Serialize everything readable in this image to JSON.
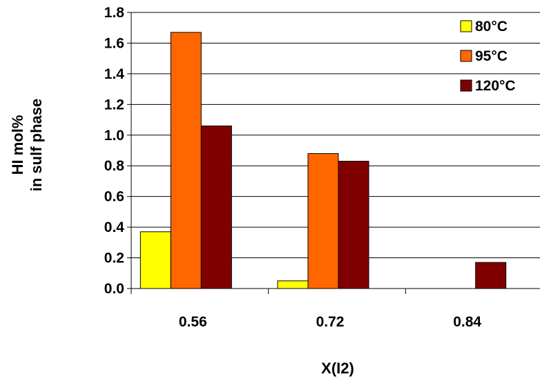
{
  "chart_data": {
    "type": "bar",
    "categories": [
      "0.56",
      "0.72",
      "0.84"
    ],
    "series": [
      {
        "name": "80°C",
        "values": [
          0.37,
          0.05,
          0.0
        ],
        "color": "#FFFF00"
      },
      {
        "name": "95°C",
        "values": [
          1.67,
          0.88,
          0.0
        ],
        "color": "#FF6600"
      },
      {
        "name": "120°C",
        "values": [
          1.06,
          0.83,
          0.17
        ],
        "color": "#800000"
      }
    ],
    "title": "",
    "xlabel": "X(I2)",
    "ylabel_lines": [
      "HI mol%",
      "in sulf phase"
    ],
    "ylim": [
      0,
      1.8
    ],
    "yticks": [
      "0.0",
      "0.2",
      "0.4",
      "0.6",
      "0.8",
      "1.0",
      "1.2",
      "1.4",
      "1.6",
      "1.8"
    ],
    "grid": true,
    "legend_position": "top-right"
  }
}
